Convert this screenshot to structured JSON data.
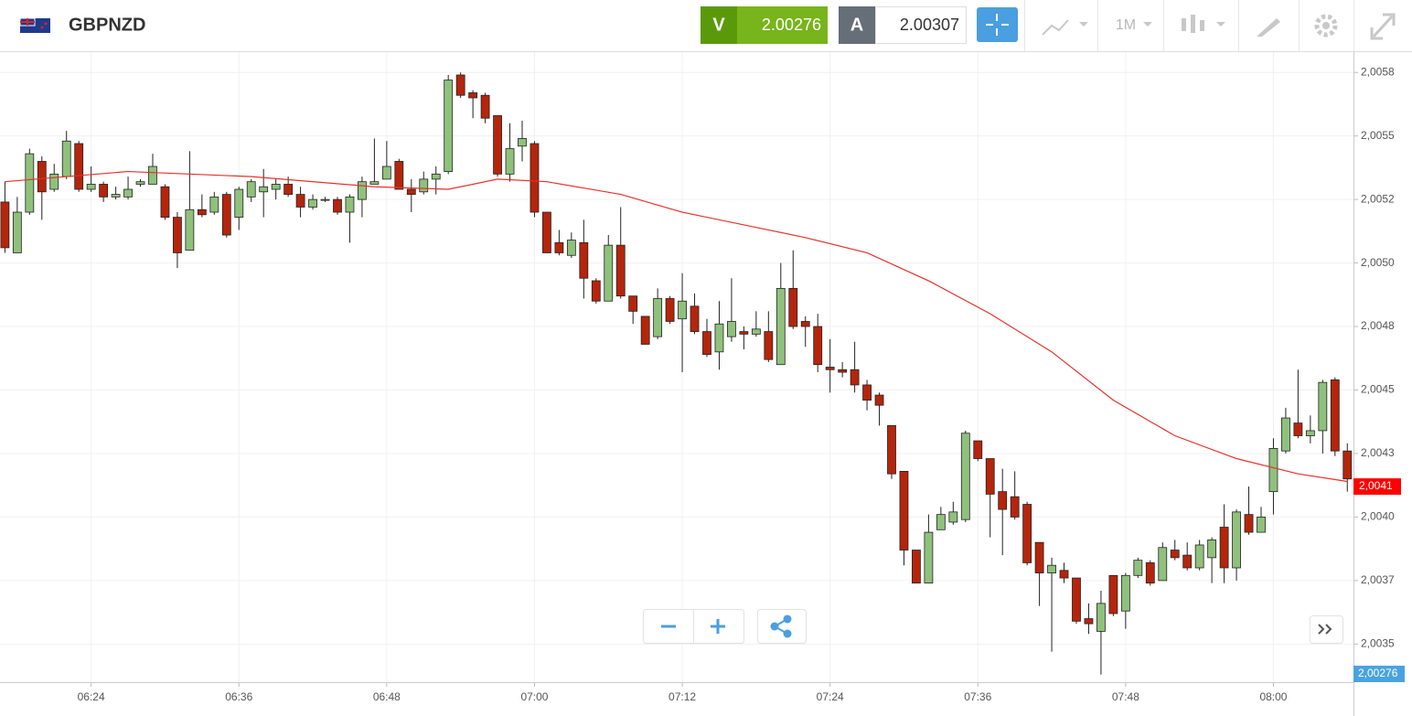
{
  "header": {
    "symbol": "GBPNZD",
    "sell_label": "V",
    "sell_price": 2.00276,
    "buy_label": "A",
    "buy_price": 2.00307,
    "timeframe": "1M"
  },
  "chart_data": {
    "type": "candlestick",
    "x": [
      377,
      378,
      379,
      380,
      381,
      382,
      383,
      384,
      385,
      386,
      387,
      388,
      389,
      390,
      391,
      392,
      393,
      394,
      395,
      396,
      397,
      398,
      399,
      400,
      401,
      402,
      403,
      404,
      405,
      406,
      407,
      408,
      409,
      410,
      411,
      412,
      413,
      414,
      415,
      416,
      417,
      418,
      419,
      420,
      421,
      422,
      423,
      424,
      425,
      426,
      427,
      428,
      429,
      430,
      431,
      432,
      433,
      434,
      435,
      436,
      437,
      438,
      439,
      440,
      441,
      442,
      443,
      444,
      445,
      446,
      447,
      448,
      449,
      450,
      451,
      452,
      453,
      454,
      455,
      456,
      457,
      458,
      459,
      460,
      461,
      462,
      463,
      464,
      465,
      466,
      467,
      468,
      469,
      470,
      471,
      472,
      473,
      474,
      475,
      476,
      477,
      478,
      479,
      480,
      481,
      482,
      483,
      484,
      485,
      486
    ],
    "open": [
      2.00524,
      2.00504,
      2.0052,
      2.0054,
      2.00529,
      2.00534,
      2.00547,
      2.00529,
      2.00531,
      2.00526,
      2.00526,
      2.00531,
      2.00531,
      2.0053,
      2.00518,
      2.00505,
      2.00521,
      2.0052,
      2.00527,
      2.00518,
      2.00526,
      2.00528,
      2.00529,
      2.00531,
      2.00527,
      2.00522,
      2.00525,
      2.00525,
      2.0052,
      2.00525,
      2.00531,
      2.00533,
      2.0054,
      2.00529,
      2.00528,
      2.00533,
      2.00536,
      2.00574,
      2.00567,
      2.00566,
      2.00558,
      2.00535,
      2.00546,
      2.00547,
      2.0052,
      2.00508,
      2.00503,
      2.00508,
      2.00493,
      2.00485,
      2.00507,
      2.00487,
      2.00479,
      2.00471,
      2.00486,
      2.00478,
      2.00483,
      2.00473,
      2.00465,
      2.00471,
      2.00473,
      2.00472,
      2.00473,
      2.0046,
      2.0049,
      2.00477,
      2.00475,
      2.00459,
      2.00458,
      2.00458,
      2.00452,
      2.00448,
      2.00436,
      2.00418,
      2.00387,
      2.00374,
      2.00395,
      2.00398,
      2.00399,
      2.0043,
      2.00423,
      2.0041,
      2.00408,
      2.00405,
      2.0039,
      2.00378,
      2.00379,
      2.00376,
      2.0036,
      2.00355,
      2.00377,
      2.00363,
      2.00377,
      2.00382,
      2.00375,
      2.00387,
      2.00385,
      2.0038,
      2.00384,
      2.00396,
      2.0038,
      2.00401,
      2.00394,
      2.0041,
      2.00426,
      2.00437,
      2.00432,
      2.00434,
      2.00454,
      2.00426
    ],
    "high": [
      2.00532,
      2.00526,
      2.00545,
      2.00542,
      2.00539,
      2.00552,
      2.00548,
      2.00538,
      2.00532,
      2.0053,
      2.00534,
      2.00533,
      2.00543,
      2.00531,
      2.0052,
      2.00544,
      2.00527,
      2.00528,
      2.00528,
      2.0053,
      2.00533,
      2.00537,
      2.00533,
      2.00534,
      2.0053,
      2.00527,
      2.00526,
      2.00526,
      2.00527,
      2.00534,
      2.00549,
      2.00548,
      2.00541,
      2.00533,
      2.00536,
      2.00538,
      2.00574,
      2.00575,
      2.00568,
      2.00567,
      2.00558,
      2.00555,
      2.00556,
      2.00548,
      2.0052,
      2.00513,
      2.00512,
      2.00517,
      2.00494,
      2.00511,
      2.00522,
      2.00487,
      2.00479,
      2.0049,
      2.00487,
      2.00496,
      2.00488,
      2.00478,
      2.00485,
      2.00494,
      2.00475,
      2.00481,
      2.00481,
      2.005,
      2.00505,
      2.00479,
      2.0048,
      2.0047,
      2.00461,
      2.00469,
      2.00454,
      2.00449,
      2.00436,
      2.00418,
      2.00387,
      2.00401,
      2.00404,
      2.00406,
      2.00434,
      2.0043,
      2.00423,
      2.00419,
      2.00418,
      2.00406,
      2.0039,
      2.00384,
      2.00382,
      2.00376,
      2.00366,
      2.00371,
      2.00377,
      2.00378,
      2.00384,
      2.00383,
      2.0039,
      2.00391,
      2.0039,
      2.00391,
      2.00392,
      2.00405,
      2.00403,
      2.00412,
      2.00404,
      2.00431,
      2.00443,
      2.00458,
      2.0044,
      2.00454,
      2.00455,
      2.00429
    ],
    "low": [
      2.00504,
      2.00504,
      2.00519,
      2.00517,
      2.00528,
      2.00533,
      2.00528,
      2.00528,
      2.00524,
      2.00525,
      2.00525,
      2.0053,
      2.00531,
      2.00517,
      2.00498,
      2.00505,
      2.00518,
      2.00519,
      2.0051,
      2.00513,
      2.00524,
      2.00518,
      2.00525,
      2.00526,
      2.00518,
      2.00521,
      2.00524,
      2.00519,
      2.00508,
      2.00518,
      2.00531,
      2.00533,
      2.00529,
      2.0052,
      2.00527,
      2.00527,
      2.00535,
      2.00565,
      2.00557,
      2.00555,
      2.00534,
      2.00532,
      2.0054,
      2.00518,
      2.00504,
      2.00503,
      2.00502,
      2.00486,
      2.00484,
      2.00485,
      2.00486,
      2.00476,
      2.00468,
      2.0047,
      2.00476,
      2.00457,
      2.00472,
      2.00463,
      2.00458,
      2.00469,
      2.00466,
      2.00471,
      2.00461,
      2.0046,
      2.00474,
      2.00467,
      2.00457,
      2.00449,
      2.00455,
      2.00449,
      2.00442,
      2.00436,
      2.00415,
      2.00381,
      2.00374,
      2.00374,
      2.00395,
      2.00397,
      2.00398,
      2.00422,
      2.00392,
      2.00385,
      2.00399,
      2.00381,
      2.00365,
      2.00347,
      2.00374,
      2.00358,
      2.00354,
      2.00338,
      2.00361,
      2.00356,
      2.00376,
      2.00373,
      2.00375,
      2.00383,
      2.00379,
      2.00379,
      2.00374,
      2.00374,
      2.00375,
      2.00393,
      2.00394,
      2.00401,
      2.00425,
      2.00431,
      2.00429,
      2.00425,
      2.00424,
      2.0041
    ],
    "close": [
      2.00506,
      2.0052,
      2.00543,
      2.00528,
      2.00535,
      2.00548,
      2.00529,
      2.00531,
      2.00526,
      2.00527,
      2.00529,
      2.00532,
      2.00538,
      2.00518,
      2.00504,
      2.00521,
      2.00519,
      2.00526,
      2.00511,
      2.00529,
      2.00532,
      2.0053,
      2.00531,
      2.00527,
      2.00522,
      2.00525,
      2.00525,
      2.0052,
      2.00526,
      2.00532,
      2.00532,
      2.00538,
      2.00529,
      2.00527,
      2.00533,
      2.00535,
      2.00572,
      2.00566,
      2.00565,
      2.00557,
      2.00535,
      2.00545,
      2.00549,
      2.0052,
      2.00504,
      2.00504,
      2.00509,
      2.00494,
      2.00485,
      2.00507,
      2.00487,
      2.00481,
      2.00468,
      2.00486,
      2.00477,
      2.00485,
      2.00473,
      2.00464,
      2.00476,
      2.00477,
      2.00472,
      2.00474,
      2.00462,
      2.0049,
      2.00475,
      2.00475,
      2.0046,
      2.00458,
      2.00457,
      2.00452,
      2.00446,
      2.00444,
      2.00417,
      2.00387,
      2.00374,
      2.00394,
      2.00401,
      2.00402,
      2.00433,
      2.00423,
      2.00409,
      2.00403,
      2.004,
      2.00382,
      2.00378,
      2.00381,
      2.00376,
      2.00359,
      2.00358,
      2.00366,
      2.00362,
      2.00377,
      2.00383,
      2.00374,
      2.00388,
      2.00384,
      2.0038,
      2.00389,
      2.00391,
      2.0038,
      2.00402,
      2.00394,
      2.004,
      2.00427,
      2.00439,
      2.00432,
      2.00434,
      2.00453,
      2.00426,
      2.00415
    ],
    "up_color": "#8fc17c",
    "down_color": "#b5250c",
    "ma": {
      "color": "#e8302a",
      "x": [
        377,
        387,
        397,
        407,
        413,
        417,
        421,
        427,
        432,
        437,
        442,
        447,
        452,
        457,
        462,
        467,
        472,
        477,
        482,
        486
      ],
      "values": [
        2.00532,
        2.00536,
        2.00534,
        2.0053,
        2.00529,
        2.00533,
        2.00532,
        2.00527,
        2.0052,
        2.00515,
        2.0051,
        2.00504,
        2.00493,
        2.0048,
        2.00465,
        2.00446,
        2.00432,
        2.00423,
        2.00417,
        2.00414
      ]
    },
    "last_price": {
      "value": 2.00412,
      "label": "2,0041"
    },
    "bid_tag": {
      "value": 2.00276,
      "label": "2,00276"
    },
    "xlim": [
      376.6,
      486.5
    ],
    "xticks": [
      {
        "value": 384,
        "label": "06:24"
      },
      {
        "value": 396,
        "label": "06:36"
      },
      {
        "value": 408,
        "label": "06:48"
      },
      {
        "value": 420,
        "label": "07:00"
      },
      {
        "value": 432,
        "label": "07:12"
      },
      {
        "value": 444,
        "label": "07:24"
      },
      {
        "value": 456,
        "label": "07:36"
      },
      {
        "value": 468,
        "label": "07:48"
      },
      {
        "value": 480,
        "label": "08:00"
      }
    ],
    "ylim": [
      2.00335,
      2.00583
    ],
    "yticks": [
      {
        "value": 2.00575,
        "label": "2,0058"
      },
      {
        "value": 2.0055,
        "label": "2,0055"
      },
      {
        "value": 2.00525,
        "label": "2,0052"
      },
      {
        "value": 2.005,
        "label": "2,0050"
      },
      {
        "value": 2.00475,
        "label": "2,0048"
      },
      {
        "value": 2.0045,
        "label": "2,0045"
      },
      {
        "value": 2.00425,
        "label": "2,0043"
      },
      {
        "value": 2.004,
        "label": "2,0040"
      },
      {
        "value": 2.00375,
        "label": "2,0037"
      },
      {
        "value": 2.0035,
        "label": "2,0035"
      }
    ],
    "grid": true
  }
}
